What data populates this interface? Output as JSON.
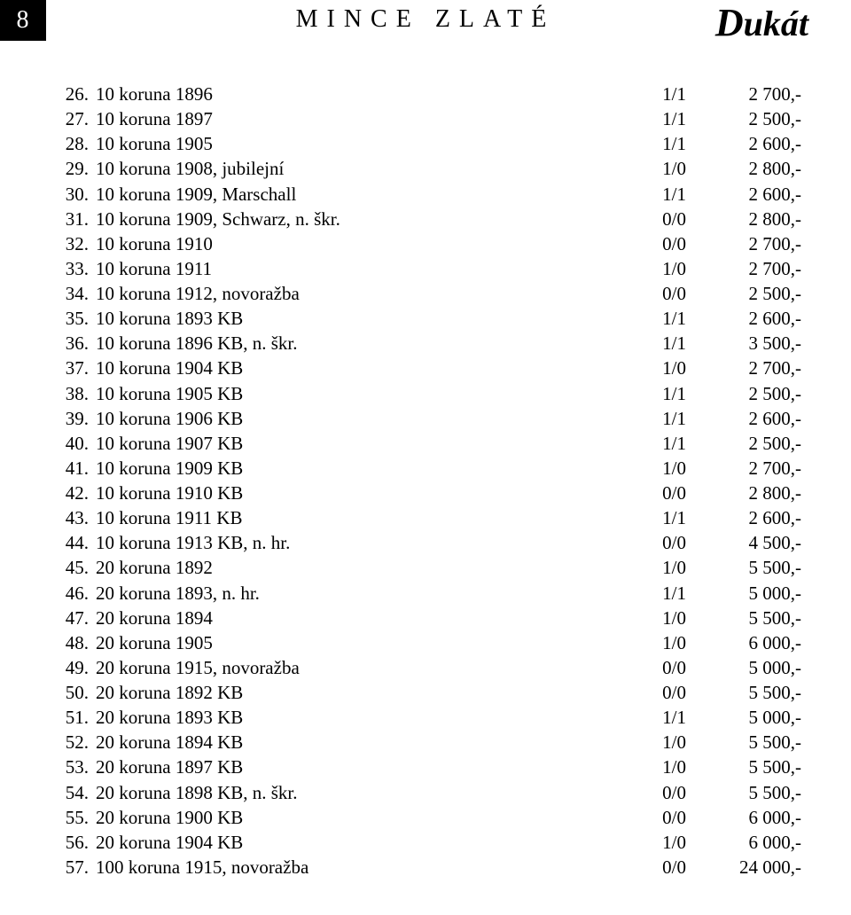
{
  "header": {
    "page_number": "8",
    "section_title": "MINCE ZLATÉ",
    "brand": "Dukát"
  },
  "items": [
    {
      "num": "26.",
      "desc": "10 koruna 1896",
      "grade": "1/1",
      "price": "2 700,-"
    },
    {
      "num": "27.",
      "desc": "10 koruna 1897",
      "grade": "1/1",
      "price": "2 500,-"
    },
    {
      "num": "28.",
      "desc": "10 koruna 1905",
      "grade": "1/1",
      "price": "2 600,-"
    },
    {
      "num": "29.",
      "desc": "10 koruna 1908, jubilejní",
      "grade": "1/0",
      "price": "2 800,-"
    },
    {
      "num": "30.",
      "desc": "10 koruna 1909, Marschall",
      "grade": "1/1",
      "price": "2 600,-"
    },
    {
      "num": "31.",
      "desc": "10 koruna 1909, Schwarz, n. škr.",
      "grade": "0/0",
      "price": "2 800,-"
    },
    {
      "num": "32.",
      "desc": "10 koruna 1910",
      "grade": "0/0",
      "price": "2 700,-"
    },
    {
      "num": "33.",
      "desc": "10 koruna 1911",
      "grade": "1/0",
      "price": "2 700,-"
    },
    {
      "num": "34.",
      "desc": "10 koruna 1912, novoražba",
      "grade": "0/0",
      "price": "2 500,-"
    },
    {
      "num": "35.",
      "desc": "10 koruna 1893 KB",
      "grade": "1/1",
      "price": "2 600,-"
    },
    {
      "num": "36.",
      "desc": "10 koruna 1896 KB, n. škr.",
      "grade": "1/1",
      "price": "3 500,-"
    },
    {
      "num": "37.",
      "desc": "10 koruna 1904 KB",
      "grade": "1/0",
      "price": "2 700,-"
    },
    {
      "num": "38.",
      "desc": "10 koruna 1905 KB",
      "grade": "1/1",
      "price": "2 500,-"
    },
    {
      "num": "39.",
      "desc": "10 koruna 1906 KB",
      "grade": "1/1",
      "price": "2 600,-"
    },
    {
      "num": "40.",
      "desc": "10 koruna 1907 KB",
      "grade": "1/1",
      "price": "2 500,-"
    },
    {
      "num": "41.",
      "desc": "10 koruna 1909 KB",
      "grade": "1/0",
      "price": "2 700,-"
    },
    {
      "num": "42.",
      "desc": "10 koruna 1910 KB",
      "grade": "0/0",
      "price": "2 800,-"
    },
    {
      "num": "43.",
      "desc": "10 koruna 1911 KB",
      "grade": "1/1",
      "price": "2 600,-"
    },
    {
      "num": "44.",
      "desc": "10 koruna 1913 KB, n. hr.",
      "grade": "0/0",
      "price": "4 500,-"
    },
    {
      "num": "45.",
      "desc": "20 koruna 1892",
      "grade": "1/0",
      "price": "5 500,-"
    },
    {
      "num": "46.",
      "desc": "20 koruna 1893, n. hr.",
      "grade": "1/1",
      "price": "5 000,-"
    },
    {
      "num": "47.",
      "desc": "20 koruna 1894",
      "grade": "1/0",
      "price": "5 500,-"
    },
    {
      "num": "48.",
      "desc": "20 koruna 1905",
      "grade": "1/0",
      "price": "6 000,-"
    },
    {
      "num": "49.",
      "desc": "20 koruna 1915, novoražba",
      "grade": "0/0",
      "price": "5 000,-"
    },
    {
      "num": "50.",
      "desc": "20 koruna 1892 KB",
      "grade": "0/0",
      "price": "5 500,-"
    },
    {
      "num": "51.",
      "desc": "20 koruna 1893 KB",
      "grade": "1/1",
      "price": "5 000,-"
    },
    {
      "num": "52.",
      "desc": "20 koruna 1894 KB",
      "grade": "1/0",
      "price": "5 500,-"
    },
    {
      "num": "53.",
      "desc": "20 koruna 1897 KB",
      "grade": "1/0",
      "price": "5 500,-"
    },
    {
      "num": "54.",
      "desc": "20 koruna 1898 KB, n. škr.",
      "grade": "0/0",
      "price": "5 500,-"
    },
    {
      "num": "55.",
      "desc": "20 koruna 1900 KB",
      "grade": "0/0",
      "price": "6 000,-"
    },
    {
      "num": "56.",
      "desc": "20 koruna 1904 KB",
      "grade": "1/0",
      "price": "6 000,-"
    },
    {
      "num": "57.",
      "desc": "100 koruna 1915, novoražba",
      "grade": "0/0",
      "price": "24 000,-"
    }
  ]
}
